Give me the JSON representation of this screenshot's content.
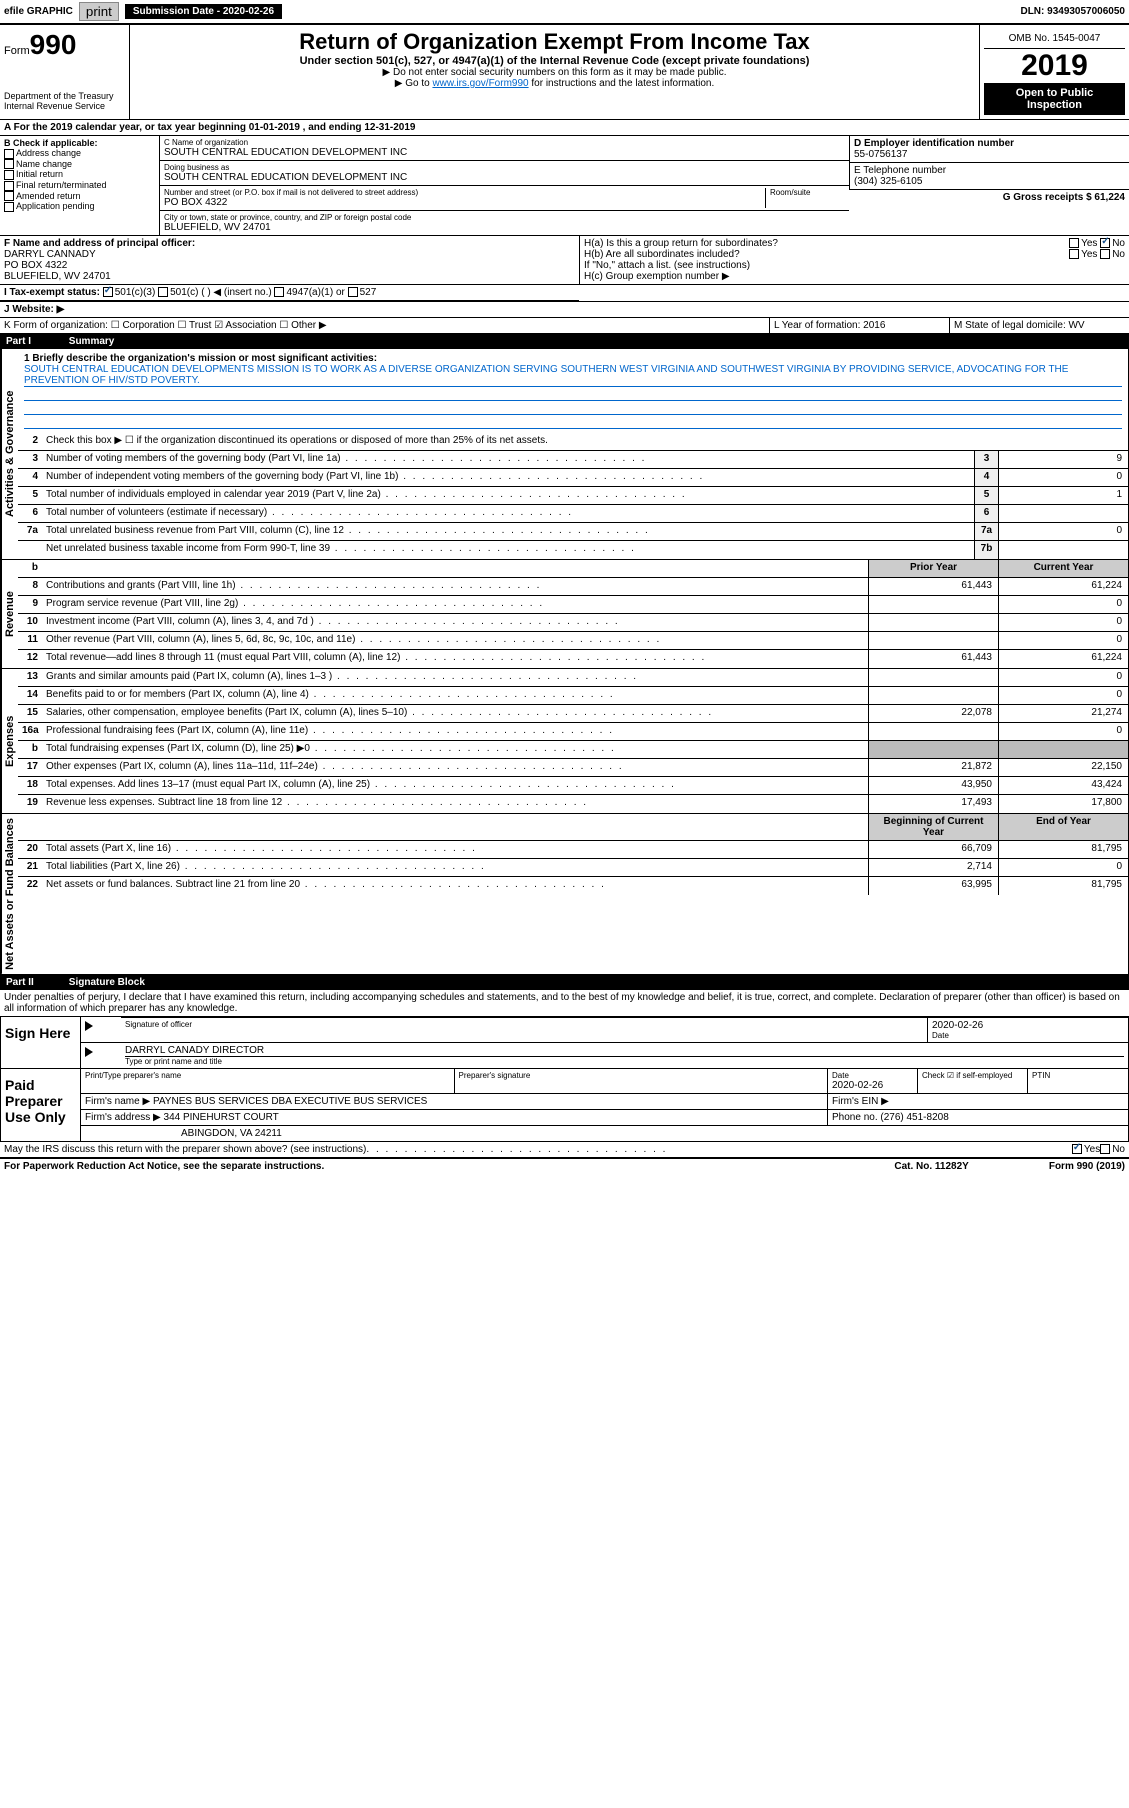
{
  "topbar": {
    "efile": "efile GRAPHIC",
    "print": "print",
    "sub_date_label": "Submission Date - 2020-02-26",
    "dln": "DLN: 93493057006050"
  },
  "header": {
    "form_label": "Form",
    "form_number": "990",
    "dept": "Department of the Treasury\nInternal Revenue Service",
    "title": "Return of Organization Exempt From Income Tax",
    "subtitle": "Under section 501(c), 527, or 4947(a)(1) of the Internal Revenue Code (except private foundations)",
    "instr1": "▶ Do not enter social security numbers on this form as it may be made public.",
    "instr2_pre": "▶ Go to ",
    "instr2_link": "www.irs.gov/Form990",
    "instr2_post": " for instructions and the latest information.",
    "omb": "OMB No. 1545-0047",
    "year": "2019",
    "open_pub": "Open to Public Inspection"
  },
  "section_a": "A For the 2019 calendar year, or tax year beginning 01-01-2019   , and ending 12-31-2019",
  "box_b": {
    "label": "B Check if applicable:",
    "addr_change": "Address change",
    "name_change": "Name change",
    "initial": "Initial return",
    "final": "Final return/terminated",
    "amended": "Amended return",
    "app_pending": "Application pending"
  },
  "box_c": {
    "name_label": "C Name of organization",
    "name": "SOUTH CENTRAL EDUCATION DEVELOPMENT INC",
    "dba_label": "Doing business as",
    "dba": "SOUTH CENTRAL EDUCATION DEVELOPMENT INC",
    "addr_label": "Number and street (or P.O. box if mail is not delivered to street address)",
    "addr": "PO BOX 4322",
    "room_label": "Room/suite",
    "city_label": "City or town, state or province, country, and ZIP or foreign postal code",
    "city": "BLUEFIELD, WV  24701"
  },
  "box_d": {
    "label": "D Employer identification number",
    "val": "55-0756137"
  },
  "box_e": {
    "label": "E Telephone number",
    "val": "(304) 325-6105"
  },
  "box_g": {
    "label": "G Gross receipts $ 61,224"
  },
  "box_f": {
    "label": "F  Name and address of principal officer:",
    "name": "DARRYL CANNADY",
    "addr1": "PO BOX 4322",
    "addr2": "BLUEFIELD, WV  24701"
  },
  "box_h": {
    "ha": "H(a)  Is this a group return for subordinates?",
    "hb": "H(b)  Are all subordinates included?",
    "hb_note": "If \"No,\" attach a list. (see instructions)",
    "hc": "H(c)  Group exemption number ▶",
    "yes": "Yes",
    "no": "No"
  },
  "tax_exempt": {
    "i_label": "I  Tax-exempt status:",
    "c3": "501(c)(3)",
    "c": "501(c) (   ) ◀ (insert no.)",
    "a1": "4947(a)(1) or",
    "s527": "527"
  },
  "box_j": "J   Website: ▶",
  "box_k": "K Form of organization:    ☐ Corporation   ☐ Trust   ☑ Association   ☐ Other ▶",
  "box_l": {
    "label": "L Year of formation: 2016"
  },
  "box_m": {
    "label": "M State of legal domicile: WV"
  },
  "part1": {
    "header_num": "Part I",
    "header_title": "Summary",
    "line1_label": "1 Briefly describe the organization's mission or most significant activities:",
    "line1_text": "SOUTH CENTRAL EDUCATION DEVELOPMENTS MISSION IS TO WORK AS A DIVERSE ORGANIZATION SERVING SOUTHERN WEST VIRGINIA AND SOUTHWEST VIRGINIA BY PROVIDING SERVICE, ADVOCATING FOR THE PREVENTION OF HIV/STD POVERTY.",
    "line2": "Check this box ▶ ☐  if the organization discontinued its operations or disposed of more than 25% of its net assets.",
    "activities_label": "Activities & Governance",
    "revenue_label": "Revenue",
    "expenses_label": "Expenses",
    "netassets_label": "Net Assets or Fund Balances",
    "prior_year": "Prior Year",
    "current_year": "Current Year",
    "begin_year": "Beginning of Current Year",
    "end_year": "End of Year",
    "rows_act": [
      {
        "n": "3",
        "t": "Number of voting members of the governing body (Part VI, line 1a)",
        "box": "3",
        "v": "9"
      },
      {
        "n": "4",
        "t": "Number of independent voting members of the governing body (Part VI, line 1b)",
        "box": "4",
        "v": "0"
      },
      {
        "n": "5",
        "t": "Total number of individuals employed in calendar year 2019 (Part V, line 2a)",
        "box": "5",
        "v": "1"
      },
      {
        "n": "6",
        "t": "Total number of volunteers (estimate if necessary)",
        "box": "6",
        "v": ""
      },
      {
        "n": "7a",
        "t": "Total unrelated business revenue from Part VIII, column (C), line 12",
        "box": "7a",
        "v": "0"
      },
      {
        "n": "",
        "t": "Net unrelated business taxable income from Form 990-T, line 39",
        "box": "7b",
        "v": ""
      }
    ],
    "rows_rev": [
      {
        "n": "8",
        "t": "Contributions and grants (Part VIII, line 1h)",
        "py": "61,443",
        "cy": "61,224"
      },
      {
        "n": "9",
        "t": "Program service revenue (Part VIII, line 2g)",
        "py": "",
        "cy": "0"
      },
      {
        "n": "10",
        "t": "Investment income (Part VIII, column (A), lines 3, 4, and 7d )",
        "py": "",
        "cy": "0"
      },
      {
        "n": "11",
        "t": "Other revenue (Part VIII, column (A), lines 5, 6d, 8c, 9c, 10c, and 11e)",
        "py": "",
        "cy": "0"
      },
      {
        "n": "12",
        "t": "Total revenue—add lines 8 through 11 (must equal Part VIII, column (A), line 12)",
        "py": "61,443",
        "cy": "61,224"
      }
    ],
    "rows_exp": [
      {
        "n": "13",
        "t": "Grants and similar amounts paid (Part IX, column (A), lines 1–3 )",
        "py": "",
        "cy": "0"
      },
      {
        "n": "14",
        "t": "Benefits paid to or for members (Part IX, column (A), line 4)",
        "py": "",
        "cy": "0"
      },
      {
        "n": "15",
        "t": "Salaries, other compensation, employee benefits (Part IX, column (A), lines 5–10)",
        "py": "22,078",
        "cy": "21,274"
      },
      {
        "n": "16a",
        "t": "Professional fundraising fees (Part IX, column (A), line 11e)",
        "py": "",
        "cy": "0"
      },
      {
        "n": "b",
        "t": "Total fundraising expenses (Part IX, column (D), line 25) ▶0",
        "py": "shaded",
        "cy": "shaded"
      },
      {
        "n": "17",
        "t": "Other expenses (Part IX, column (A), lines 11a–11d, 11f–24e)",
        "py": "21,872",
        "cy": "22,150"
      },
      {
        "n": "18",
        "t": "Total expenses. Add lines 13–17 (must equal Part IX, column (A), line 25)",
        "py": "43,950",
        "cy": "43,424"
      },
      {
        "n": "19",
        "t": "Revenue less expenses. Subtract line 18 from line 12",
        "py": "17,493",
        "cy": "17,800"
      }
    ],
    "rows_net": [
      {
        "n": "20",
        "t": "Total assets (Part X, line 16)",
        "py": "66,709",
        "cy": "81,795"
      },
      {
        "n": "21",
        "t": "Total liabilities (Part X, line 26)",
        "py": "2,714",
        "cy": "0"
      },
      {
        "n": "22",
        "t": "Net assets or fund balances. Subtract line 21 from line 20",
        "py": "63,995",
        "cy": "81,795"
      }
    ]
  },
  "part2": {
    "header_num": "Part II",
    "header_title": "Signature Block",
    "declaration": "Under penalties of perjury, I declare that I have examined this return, including accompanying schedules and statements, and to the best of my knowledge and belief, it is true, correct, and complete. Declaration of preparer (other than officer) is based on all information of which preparer has any knowledge.",
    "sign_here": "Sign Here",
    "sig_officer": "Signature of officer",
    "sig_date_label": "Date",
    "sig_date": "2020-02-26",
    "officer_name": "DARRYL CANADY  DIRECTOR",
    "type_name": "Type or print name and title",
    "paid_prep": "Paid Preparer Use Only",
    "prep_name_label": "Print/Type preparer's name",
    "prep_sig_label": "Preparer's signature",
    "date_label": "Date",
    "date_val": "2020-02-26",
    "check_label": "Check ☑ if self-employed",
    "ptin_label": "PTIN",
    "firm_name_label": "Firm's name   ▶",
    "firm_name": "PAYNES BUS SERVICES DBA EXECUTIVE BUS SERVICES",
    "firm_ein": "Firm's EIN ▶",
    "firm_addr_label": "Firm's address ▶",
    "firm_addr1": "344 PINEHURST COURT",
    "firm_addr2": "ABINGDON, VA  24211",
    "phone_label": "Phone no. (276) 451-8208",
    "discuss": "May the IRS discuss this return with the preparer shown above? (see instructions)",
    "discuss_yes": "Yes",
    "discuss_no": "No"
  },
  "footer": {
    "left": "For Paperwork Reduction Act Notice, see the separate instructions.",
    "mid": "Cat. No. 11282Y",
    "right": "Form 990 (2019)"
  }
}
